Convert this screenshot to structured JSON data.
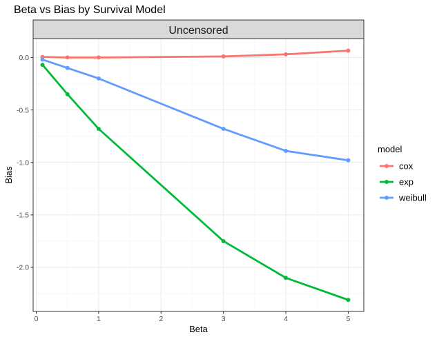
{
  "chart_data": {
    "type": "line",
    "title": "Beta vs Bias by Survival Model",
    "facet_label": "Uncensored",
    "xlabel": "Beta",
    "ylabel": "Bias",
    "xlim": [
      -0.05,
      5.25
    ],
    "ylim": [
      -2.42,
      0.18
    ],
    "x_ticks": [
      0,
      1,
      2,
      3,
      4,
      5
    ],
    "x_tick_labels": [
      "0",
      "1",
      "2",
      "3",
      "4",
      "5"
    ],
    "y_ticks": [
      0.0,
      -0.5,
      -1.0,
      -1.5,
      -2.0
    ],
    "y_tick_labels": [
      "0.0",
      "-0.5",
      "-1.0",
      "-1.5",
      "-2.0"
    ],
    "grid": true,
    "legend_title": "model",
    "legend_position": "right",
    "x": [
      0.1,
      0.5,
      1,
      3,
      4,
      5
    ],
    "series": [
      {
        "name": "cox",
        "color": "#F8766D",
        "values": [
          0.005,
          0.0,
          0.0,
          0.01,
          0.03,
          0.065
        ]
      },
      {
        "name": "exp",
        "color": "#00BA38",
        "values": [
          -0.07,
          -0.35,
          -0.68,
          -1.75,
          -2.1,
          -2.31
        ]
      },
      {
        "name": "weibull",
        "color": "#619CFF",
        "values": [
          -0.02,
          -0.1,
          -0.2,
          -0.68,
          -0.89,
          -0.98
        ]
      }
    ]
  }
}
